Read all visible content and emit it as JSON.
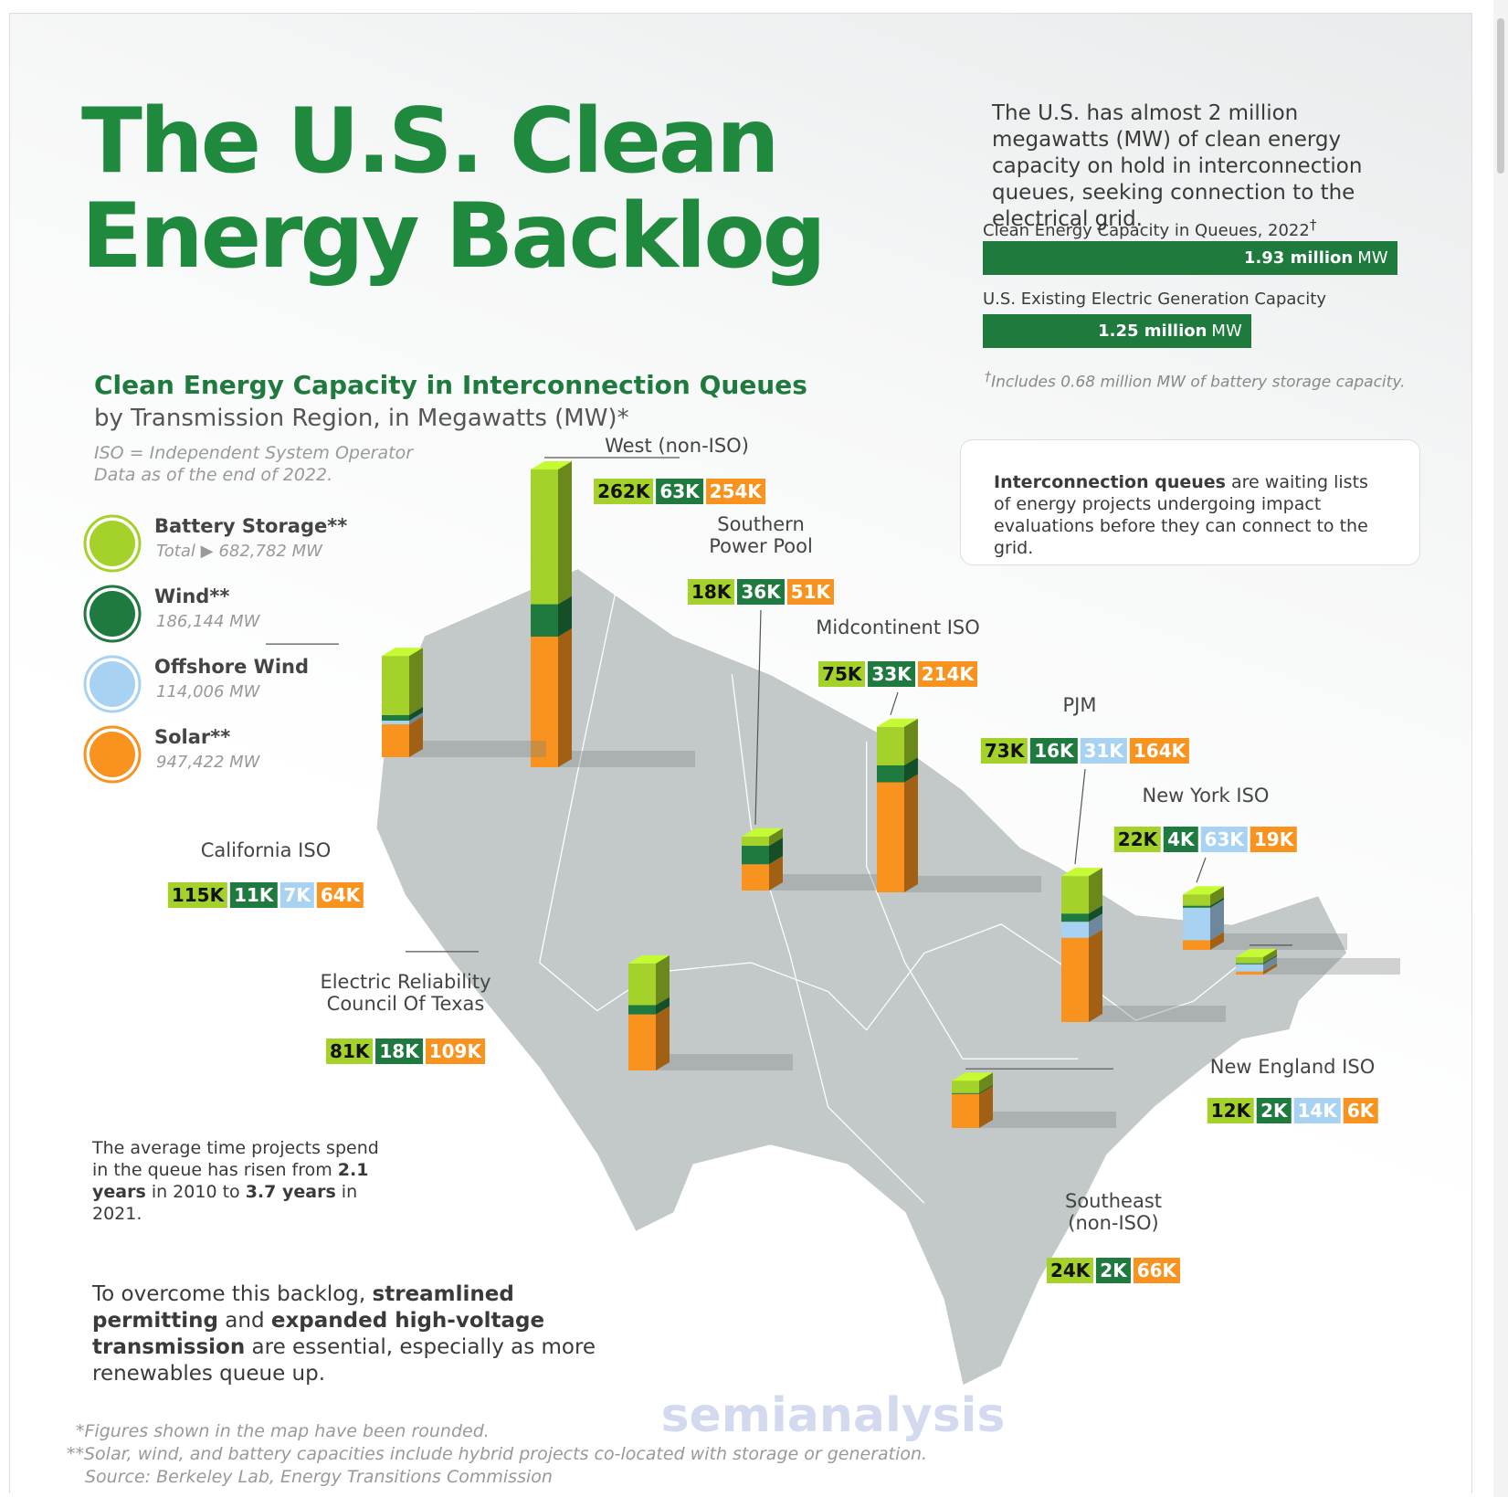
{
  "header": {
    "title_lines": [
      "The U.S. Clean",
      "Energy Backlog"
    ],
    "intro": "The U.S. has almost 2 million megawatts (MW) of clean energy capacity on hold in interconnection queues, seeking connection to the electrical grid.",
    "bars": [
      {
        "label": "Clean Energy Capacity in Queues, 2022",
        "label_mark": "†",
        "value": 1.93,
        "value_label": "1.93 million",
        "unit": "MW"
      },
      {
        "label": "U.S. Existing Electric Generation Capacity",
        "value": 1.25,
        "value_label": "1.25 million",
        "unit": "MW"
      }
    ],
    "footnote_mark": "†",
    "footnote": "Includes 0.68 million MW of battery storage capacity."
  },
  "info": {
    "title": "Interconnection queues",
    "text": " are waiting lists of energy projects undergoing impact evaluations before they can connect to the grid."
  },
  "map": {
    "title": "Clean Energy Capacity in Interconnection Queues",
    "subtitle": "by Transmission Region, in Megawatts (MW)*",
    "notes": [
      "ISO = Independent System Operator",
      "Data as of the end of 2022."
    ],
    "legend": [
      {
        "name": "Battery Storage**",
        "prefix": "Total ▶",
        "total": "682,782 MW",
        "color": "#a4d12a"
      },
      {
        "name": "Wind**",
        "total": "186,144 MW",
        "color": "#1e7a3e"
      },
      {
        "name": "Offshore Wind",
        "total": "114,006 MW",
        "color": "#a8d2f2"
      },
      {
        "name": "Solar**",
        "total": "947,422 MW",
        "color": "#f7931e"
      }
    ],
    "regions": [
      {
        "name": "West (non-ISO)",
        "values": [
          262000,
          63000,
          null,
          254000
        ],
        "value_labels": [
          "262K",
          "63K",
          null,
          "254K"
        ]
      },
      {
        "name": "California ISO",
        "values": [
          115000,
          11000,
          7000,
          64000
        ],
        "value_labels": [
          "115K",
          "11K",
          "7K",
          "64K"
        ]
      },
      {
        "name": "Southern\nPower Pool",
        "values": [
          18000,
          36000,
          null,
          51000
        ],
        "value_labels": [
          "18K",
          "36K",
          null,
          "51K"
        ]
      },
      {
        "name": "Midcontinent ISO",
        "values": [
          75000,
          33000,
          null,
          214000
        ],
        "value_labels": [
          "75K",
          "33K",
          null,
          "214K"
        ]
      },
      {
        "name": "PJM",
        "values": [
          73000,
          16000,
          31000,
          164000
        ],
        "value_labels": [
          "73K",
          "16K",
          "31K",
          "164K"
        ]
      },
      {
        "name": "New York ISO",
        "values": [
          22000,
          4000,
          63000,
          19000
        ],
        "value_labels": [
          "22K",
          "4K",
          "63K",
          "19K"
        ]
      },
      {
        "name": "New England ISO",
        "values": [
          12000,
          2000,
          14000,
          6000
        ],
        "value_labels": [
          "12K",
          "2K",
          "14K",
          "6K"
        ]
      },
      {
        "name": "Electric Reliability\nCouncil Of Texas",
        "values": [
          81000,
          18000,
          null,
          109000
        ],
        "value_labels": [
          "81K",
          "18K",
          null,
          "109K"
        ]
      },
      {
        "name": "Southeast\n(non-ISO)",
        "values": [
          24000,
          2000,
          null,
          66000
        ],
        "value_labels": [
          "24K",
          "2K",
          null,
          "66K"
        ]
      }
    ]
  },
  "queue_time": [
    "The average time projects spend in the queue has risen from ",
    "2.1 years",
    " in 2010 to ",
    "3.7 years",
    " in 2021."
  ],
  "conclusion": [
    "To overcome this backlog, ",
    "streamlined permitting",
    " and ",
    "expanded high-voltage transmission",
    " are essential, especially as more renewables queue up."
  ],
  "footnotes": [
    "*Figures shown in the map have been rounded.",
    "**Solar, wind, and battery capacities include hybrid projects co-located with storage or generation.",
    "Source: Berkeley Lab, Energy Transitions Commission"
  ],
  "watermark": "semianalysis"
}
